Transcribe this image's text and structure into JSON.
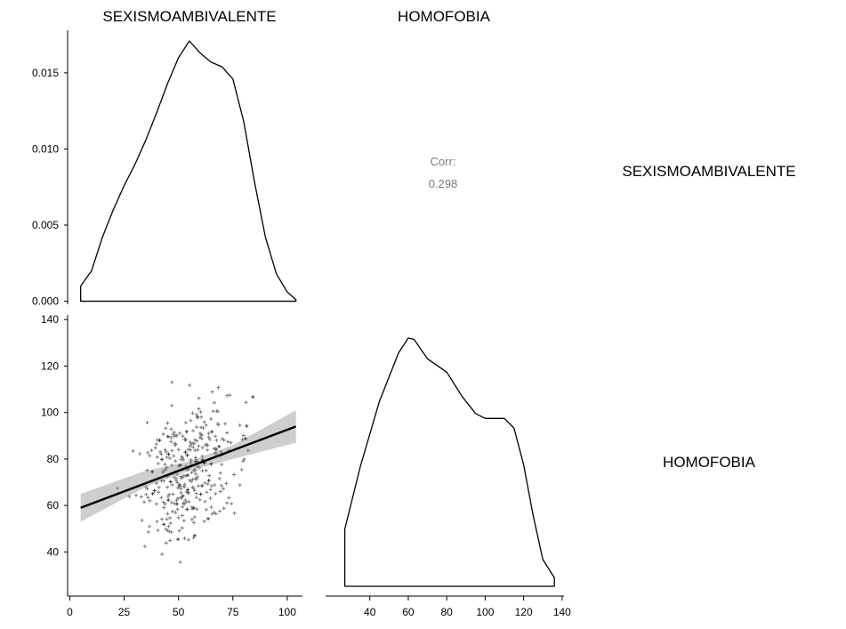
{
  "chart_data": {
    "type": "scatter",
    "variables": [
      "SEXISMOAMBIVALENTE",
      "HOMOFOBIA"
    ],
    "column_headers": [
      "SEXISMOAMBIVALENTE",
      "HOMOFOBIA"
    ],
    "row_labels": [
      "SEXISMOAMBIVALENTE",
      "HOMOFOBIA"
    ],
    "correlation": {
      "label": "Corr:",
      "value": "0.298"
    },
    "density_sexismo": {
      "x": [
        5,
        10,
        15,
        20,
        25,
        30,
        35,
        40,
        45,
        50,
        55,
        60,
        65,
        70,
        75,
        80,
        85,
        90,
        95,
        100,
        104
      ],
      "y": [
        0.001,
        0.002,
        0.0042,
        0.006,
        0.0076,
        0.009,
        0.0106,
        0.0124,
        0.0143,
        0.016,
        0.0171,
        0.0163,
        0.0157,
        0.0154,
        0.0146,
        0.0118,
        0.0078,
        0.0042,
        0.0018,
        0.0006,
        0.0001
      ],
      "yticks": [
        "0.000",
        "0.005",
        "0.010",
        "0.015"
      ],
      "ylim": [
        -0.0002,
        0.0178
      ]
    },
    "density_homofobia": {
      "x": [
        27,
        35,
        45,
        55,
        60,
        63,
        70,
        80,
        88,
        95,
        100,
        110,
        115,
        120,
        125,
        130,
        136
      ],
      "y": [
        0.0047,
        0.0098,
        0.0152,
        0.0192,
        0.0204,
        0.0203,
        0.0187,
        0.0176,
        0.0156,
        0.0142,
        0.0138,
        0.0138,
        0.013,
        0.01,
        0.0058,
        0.0022,
        0.0007
      ]
    },
    "scatter": {
      "xlim": [
        -1,
        107
      ],
      "ylim": [
        21,
        142
      ],
      "xticks": [
        0,
        25,
        50,
        75,
        100
      ],
      "yticks": [
        40,
        60,
        80,
        100,
        120,
        140
      ],
      "n_points": 330,
      "seed": 7,
      "regression": {
        "x": [
          5,
          104
        ],
        "y": [
          59,
          94
        ]
      },
      "ci_band": {
        "x": [
          5,
          35,
          55,
          75,
          104
        ],
        "lower": [
          53,
          68,
          75,
          80,
          87
        ],
        "upper": [
          65,
          75,
          79,
          86,
          101
        ]
      }
    },
    "homofobia_xticks": [
      40,
      60,
      80,
      100,
      120,
      140
    ],
    "homofobia_xlim": [
      17,
      141
    ]
  }
}
